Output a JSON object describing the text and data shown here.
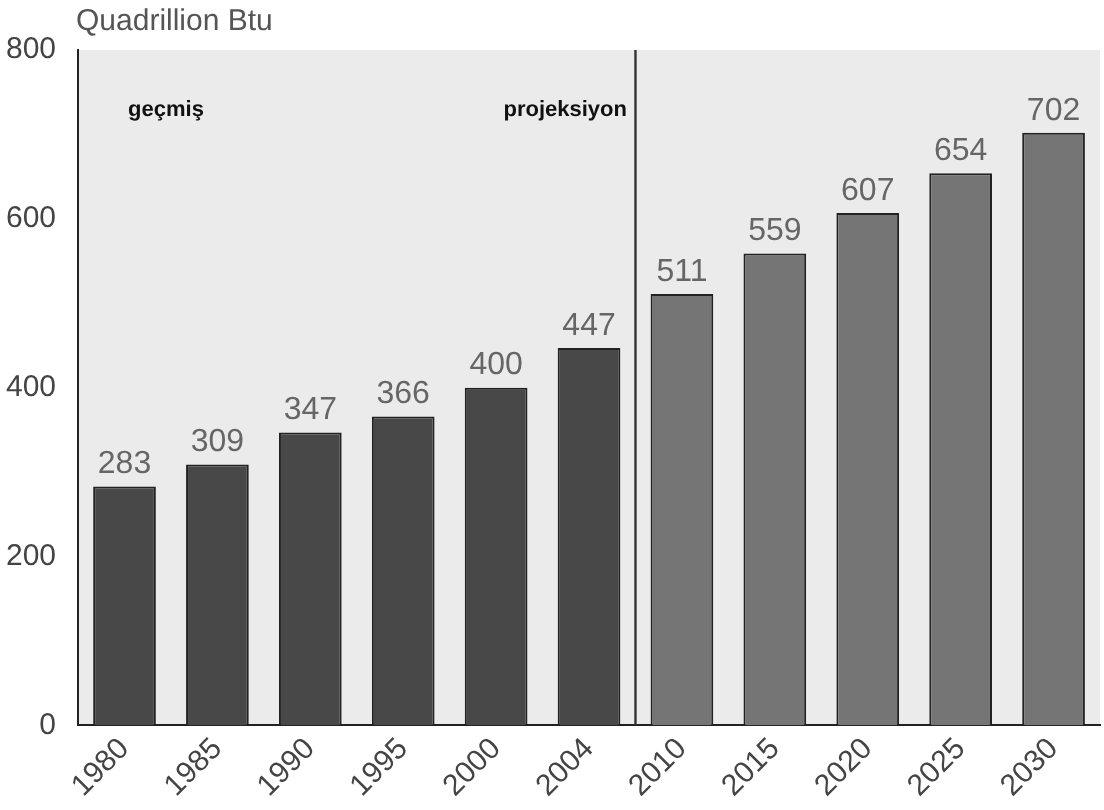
{
  "chart_data": {
    "type": "bar",
    "ylabel": "Quadrillion Btu",
    "categories": [
      "1980",
      "1985",
      "1990",
      "1995",
      "2000",
      "2004",
      "2010",
      "2015",
      "2020",
      "2025",
      "2030"
    ],
    "values": [
      283,
      309,
      347,
      366,
      400,
      447,
      511,
      559,
      607,
      654,
      702
    ],
    "colors": [
      "#484848",
      "#484848",
      "#484848",
      "#484848",
      "#484848",
      "#484848",
      "#757575",
      "#757575",
      "#757575",
      "#757575",
      "#757575"
    ],
    "ylim": [
      0,
      800
    ],
    "yticks": [
      0,
      200,
      400,
      600,
      800
    ],
    "grid": false,
    "legend": false,
    "data_labels": true,
    "ref_lines": [
      {
        "axis": "x",
        "value": "2010",
        "color": "#333333"
      }
    ],
    "annotations": [
      "geçmiş",
      "projeksiyon"
    ]
  }
}
